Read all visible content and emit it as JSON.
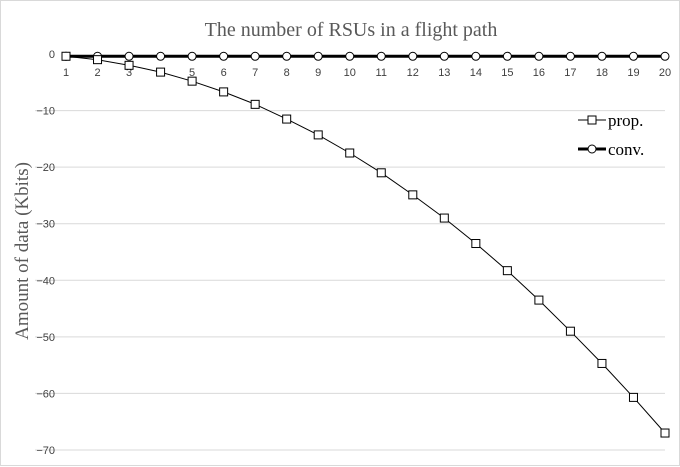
{
  "chart_data": {
    "type": "line",
    "title": "The number of RSUs in a flight path",
    "xlabel": "",
    "ylabel": "Amount of data (Kbits)",
    "x": [
      1,
      2,
      3,
      4,
      5,
      6,
      7,
      8,
      9,
      10,
      11,
      12,
      13,
      14,
      15,
      16,
      17,
      18,
      19,
      20
    ],
    "ylim": [
      -70,
      0
    ],
    "yticks": [
      0,
      -10,
      -20,
      -30,
      -40,
      -50,
      -60,
      -70
    ],
    "grid": true,
    "legend_position": "right",
    "series": [
      {
        "name": "prop.",
        "marker": "square",
        "color": "#000000",
        "values": [
          -0.4,
          -1,
          -2,
          -3.2,
          -4.8,
          -6.7,
          -8.9,
          -11.5,
          -14.3,
          -17.5,
          -21,
          -24.9,
          -29,
          -33.5,
          -38.3,
          -43.5,
          -49,
          -54.7,
          -60.7,
          -67
        ]
      },
      {
        "name": "conv.",
        "marker": "circle",
        "color": "#000000",
        "values": [
          -0.4,
          -0.4,
          -0.4,
          -0.4,
          -0.4,
          -0.4,
          -0.4,
          -0.4,
          -0.4,
          -0.4,
          -0.4,
          -0.4,
          -0.4,
          -0.4,
          -0.4,
          -0.4,
          -0.4,
          -0.4,
          -0.4,
          -0.4
        ]
      }
    ]
  }
}
